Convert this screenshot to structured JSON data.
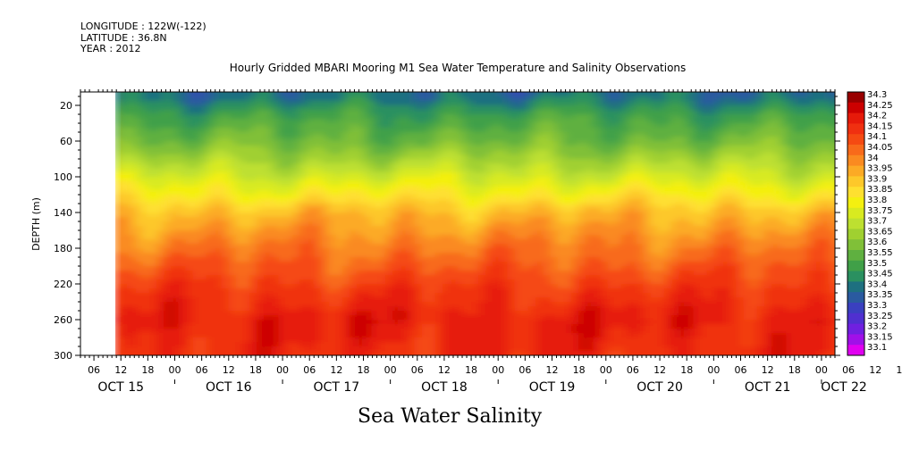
{
  "header": {
    "longitude": "LONGITUDE : 122W(-122)",
    "latitude": "LATITUDE : 36.8N",
    "year": "YEAR : 2012"
  },
  "chart_data": {
    "type": "heatmap",
    "title": "Hourly Gridded MBARI Mooring M1 Sea Water Temperature and Salinity Observations",
    "xlabel": "Sea Water Salinity",
    "ylabel": "DEPTH (m)",
    "y_ticks": [
      20,
      60,
      100,
      140,
      180,
      220,
      260,
      300
    ],
    "ylim": [
      300,
      5
    ],
    "x_hour_labels": [
      "06",
      "12",
      "18",
      "00",
      "06",
      "12",
      "18",
      "00",
      "06",
      "12",
      "18",
      "00",
      "06",
      "12",
      "18",
      "00",
      "06",
      "12",
      "18",
      "00",
      "06",
      "12",
      "18",
      "00",
      "06",
      "12",
      "18",
      "00",
      "06",
      "12",
      "18",
      "00",
      "06",
      "12",
      "18",
      "00"
    ],
    "x_date_labels": [
      "OCT 15",
      "OCT 16",
      "OCT 17",
      "OCT 18",
      "OCT 19",
      "OCT 20",
      "OCT 21",
      "OCT 22"
    ],
    "x_range": [
      "2012-10-15 03:00",
      "2012-10-22 03:00"
    ],
    "data_start": "2012-10-15 12:00",
    "colorbar": {
      "levels": [
        "34.3",
        "34.25",
        "34.2",
        "34.15",
        "34.1",
        "34.05",
        "34",
        "33.95",
        "33.9",
        "33.85",
        "33.8",
        "33.75",
        "33.7",
        "33.65",
        "33.6",
        "33.55",
        "33.5",
        "33.45",
        "33.4",
        "33.35",
        "33.3",
        "33.25",
        "33.2",
        "33.15",
        "33.1"
      ],
      "colors": [
        "#990000",
        "#cc0000",
        "#e61a0a",
        "#f03010",
        "#f54a12",
        "#f86a1a",
        "#fa8a20",
        "#fcaa25",
        "#fdc82a",
        "#fee030",
        "#f4f010",
        "#d8ea20",
        "#bde030",
        "#a0d030",
        "#80c038",
        "#5fb040",
        "#40a048",
        "#2a9060",
        "#1e7080",
        "#2a5aa0",
        "#3a40c0",
        "#5030d0",
        "#7020e0",
        "#a010e8",
        "#e000f0"
      ]
    },
    "depth_profile": [
      {
        "depth": 10,
        "salinity": 33.42
      },
      {
        "depth": 30,
        "salinity": 33.52
      },
      {
        "depth": 60,
        "salinity": 33.6
      },
      {
        "depth": 90,
        "salinity": 33.72
      },
      {
        "depth": 120,
        "salinity": 33.85
      },
      {
        "depth": 140,
        "salinity": 33.95
      },
      {
        "depth": 170,
        "salinity": 34.03
      },
      {
        "depth": 200,
        "salinity": 34.1
      },
      {
        "depth": 230,
        "salinity": 34.17
      },
      {
        "depth": 260,
        "salinity": 34.22
      },
      {
        "depth": 300,
        "salinity": 34.19
      }
    ],
    "grid": false,
    "legend": "right"
  }
}
